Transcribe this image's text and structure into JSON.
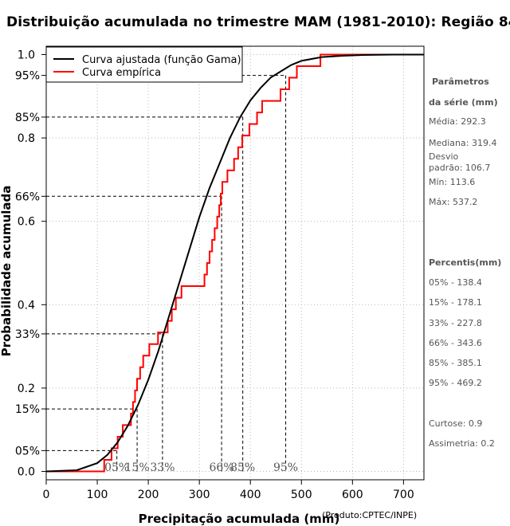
{
  "title": "Distribuição acumulada no trimestre MAM (1981-2010): Região 84",
  "credit": "(Produto:CPTEC/INPE)",
  "chart_data": {
    "type": "line",
    "xlabel": "Precipitação acumulada (mm)",
    "ylabel": "Probabilidade acumulada",
    "xlim": [
      0,
      740
    ],
    "ylim": [
      -0.02,
      1.02
    ],
    "xticks": [
      0,
      100,
      200,
      300,
      400,
      500,
      600,
      700
    ],
    "yticks": [
      {
        "value": 0.0,
        "label": "0.0"
      },
      {
        "value": 0.2,
        "label": "0.2"
      },
      {
        "value": 0.4,
        "label": "0.4"
      },
      {
        "value": 0.6,
        "label": "0.6"
      },
      {
        "value": 0.8,
        "label": "0.8"
      },
      {
        "value": 1.0,
        "label": "1.0"
      }
    ],
    "percentile_yticks": [
      {
        "value": 0.05,
        "label": "05%"
      },
      {
        "value": 0.15,
        "label": "15%"
      },
      {
        "value": 0.33,
        "label": "33%"
      },
      {
        "value": 0.66,
        "label": "66%"
      },
      {
        "value": 0.85,
        "label": "85%"
      },
      {
        "value": 0.95,
        "label": "95%"
      }
    ],
    "legend": [
      {
        "label": "Curva ajustada (função Gama)",
        "color": "#000000"
      },
      {
        "label": "Curva empírica",
        "color": "#ff0000"
      }
    ],
    "fitted_curve": {
      "name": "Curva ajustada (função Gama)",
      "color": "#000000",
      "x": [
        0,
        60,
        100,
        120,
        140,
        160,
        180,
        200,
        220,
        240,
        260,
        280,
        300,
        320,
        340,
        360,
        380,
        400,
        420,
        440,
        460,
        480,
        500,
        540,
        580,
        620,
        680,
        740
      ],
      "y": [
        0.0,
        0.003,
        0.02,
        0.04,
        0.07,
        0.11,
        0.16,
        0.22,
        0.29,
        0.37,
        0.45,
        0.53,
        0.61,
        0.68,
        0.74,
        0.8,
        0.85,
        0.89,
        0.92,
        0.945,
        0.96,
        0.975,
        0.985,
        0.994,
        0.997,
        0.999,
        1.0,
        1.0
      ]
    },
    "empirical_curve": {
      "name": "Curva empírica",
      "color": "#ff0000",
      "steps_x": [
        113.6,
        128,
        140,
        150,
        166,
        170,
        174,
        178,
        184,
        190,
        202,
        219,
        238,
        246,
        254,
        265,
        310,
        315,
        320,
        325,
        330,
        335,
        339,
        342,
        345,
        355,
        368,
        376,
        384,
        398,
        413,
        423,
        459,
        476,
        491,
        537.2
      ],
      "x_end": 740
    },
    "percentiles": [
      {
        "label": "05%",
        "p": 0.05,
        "value": 138.4
      },
      {
        "label": "15%",
        "p": 0.15,
        "value": 178.1
      },
      {
        "label": "33%",
        "p": 0.33,
        "value": 227.8
      },
      {
        "label": "66%",
        "p": 0.66,
        "value": 343.6
      },
      {
        "label": "85%",
        "p": 0.85,
        "value": 385.1
      },
      {
        "label": "95%",
        "p": 0.95,
        "value": 469.2
      }
    ]
  },
  "sidebar": {
    "params_heading_1": "Parâmetros",
    "params_heading_2": "da série (mm)",
    "media": "Média: 292.3",
    "mediana": "Mediana: 319.4",
    "desvio_1": "Desvio",
    "desvio_2": "padrão: 106.7",
    "min": "Mín: 113.6",
    "max": "Máx: 537.2",
    "percentis_heading": "Percentis(mm)",
    "p05": "05% - 138.4",
    "p15": "15% - 178.1",
    "p33": "33% - 227.8",
    "p66": "66% - 343.6",
    "p85": "85% - 385.1",
    "p95": "95% - 469.2",
    "curtose": "Curtose: 0.9",
    "assimetria": "Assimetria: 0.2"
  }
}
